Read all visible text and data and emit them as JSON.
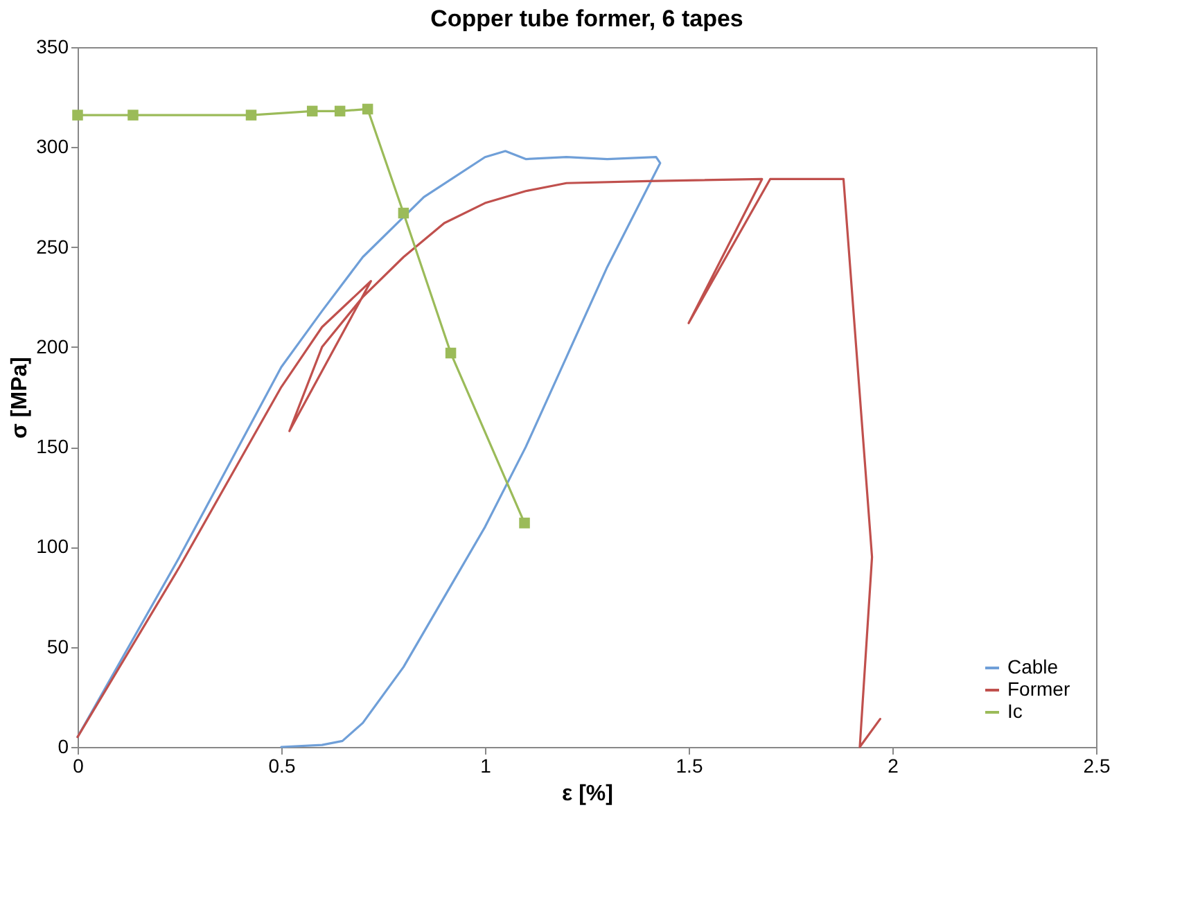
{
  "chart_data": {
    "type": "line",
    "title": "Copper tube former, 6 tapes",
    "xlabel": "ε [%]",
    "ylabel": "σ [MPa]",
    "xlim": [
      0,
      2.5
    ],
    "xticks": [
      0,
      0.5,
      1,
      1.5,
      2,
      2.5
    ],
    "ylim": [
      0,
      350
    ],
    "yticks": [
      0,
      50,
      100,
      150,
      200,
      250,
      300,
      350
    ],
    "grid": false,
    "legend": "bottom right",
    "series": [
      {
        "name": "Cable",
        "color": "#6f9fd8",
        "marker": "none",
        "x": [
          0,
          0.25,
          0.5,
          0.6,
          0.7,
          0.85,
          1.0,
          1.05,
          1.1,
          1.2,
          1.3,
          1.42,
          1.43,
          1.3,
          1.2,
          1.1,
          1.0,
          0.9,
          0.8,
          0.7,
          0.65,
          0.6,
          0.5
        ],
        "values": [
          5,
          95,
          190,
          218,
          245,
          275,
          295,
          298,
          294,
          295,
          294,
          295,
          292,
          240,
          195,
          150,
          110,
          75,
          40,
          12,
          3,
          1,
          0
        ]
      },
      {
        "name": "Former",
        "color": "#c0504d",
        "marker": "none",
        "x": [
          0,
          0.25,
          0.5,
          0.6,
          0.72,
          0.52,
          0.6,
          0.7,
          0.8,
          0.9,
          1.0,
          1.1,
          1.2,
          1.4,
          1.68,
          1.5,
          1.7,
          1.88,
          1.95,
          1.92,
          1.97
        ],
        "values": [
          5,
          90,
          180,
          210,
          233,
          158,
          200,
          225,
          245,
          262,
          272,
          278,
          282,
          283,
          284,
          212,
          284,
          284,
          95,
          0,
          14
        ]
      },
      {
        "name": "Ic",
        "color": "#9bbb59",
        "marker": "square",
        "x": [
          0,
          0.136,
          0.426,
          0.576,
          0.644,
          0.712,
          0.8,
          0.916,
          1.097
        ],
        "values": [
          316,
          316,
          316,
          318,
          318,
          319,
          267,
          197,
          112
        ]
      }
    ]
  }
}
